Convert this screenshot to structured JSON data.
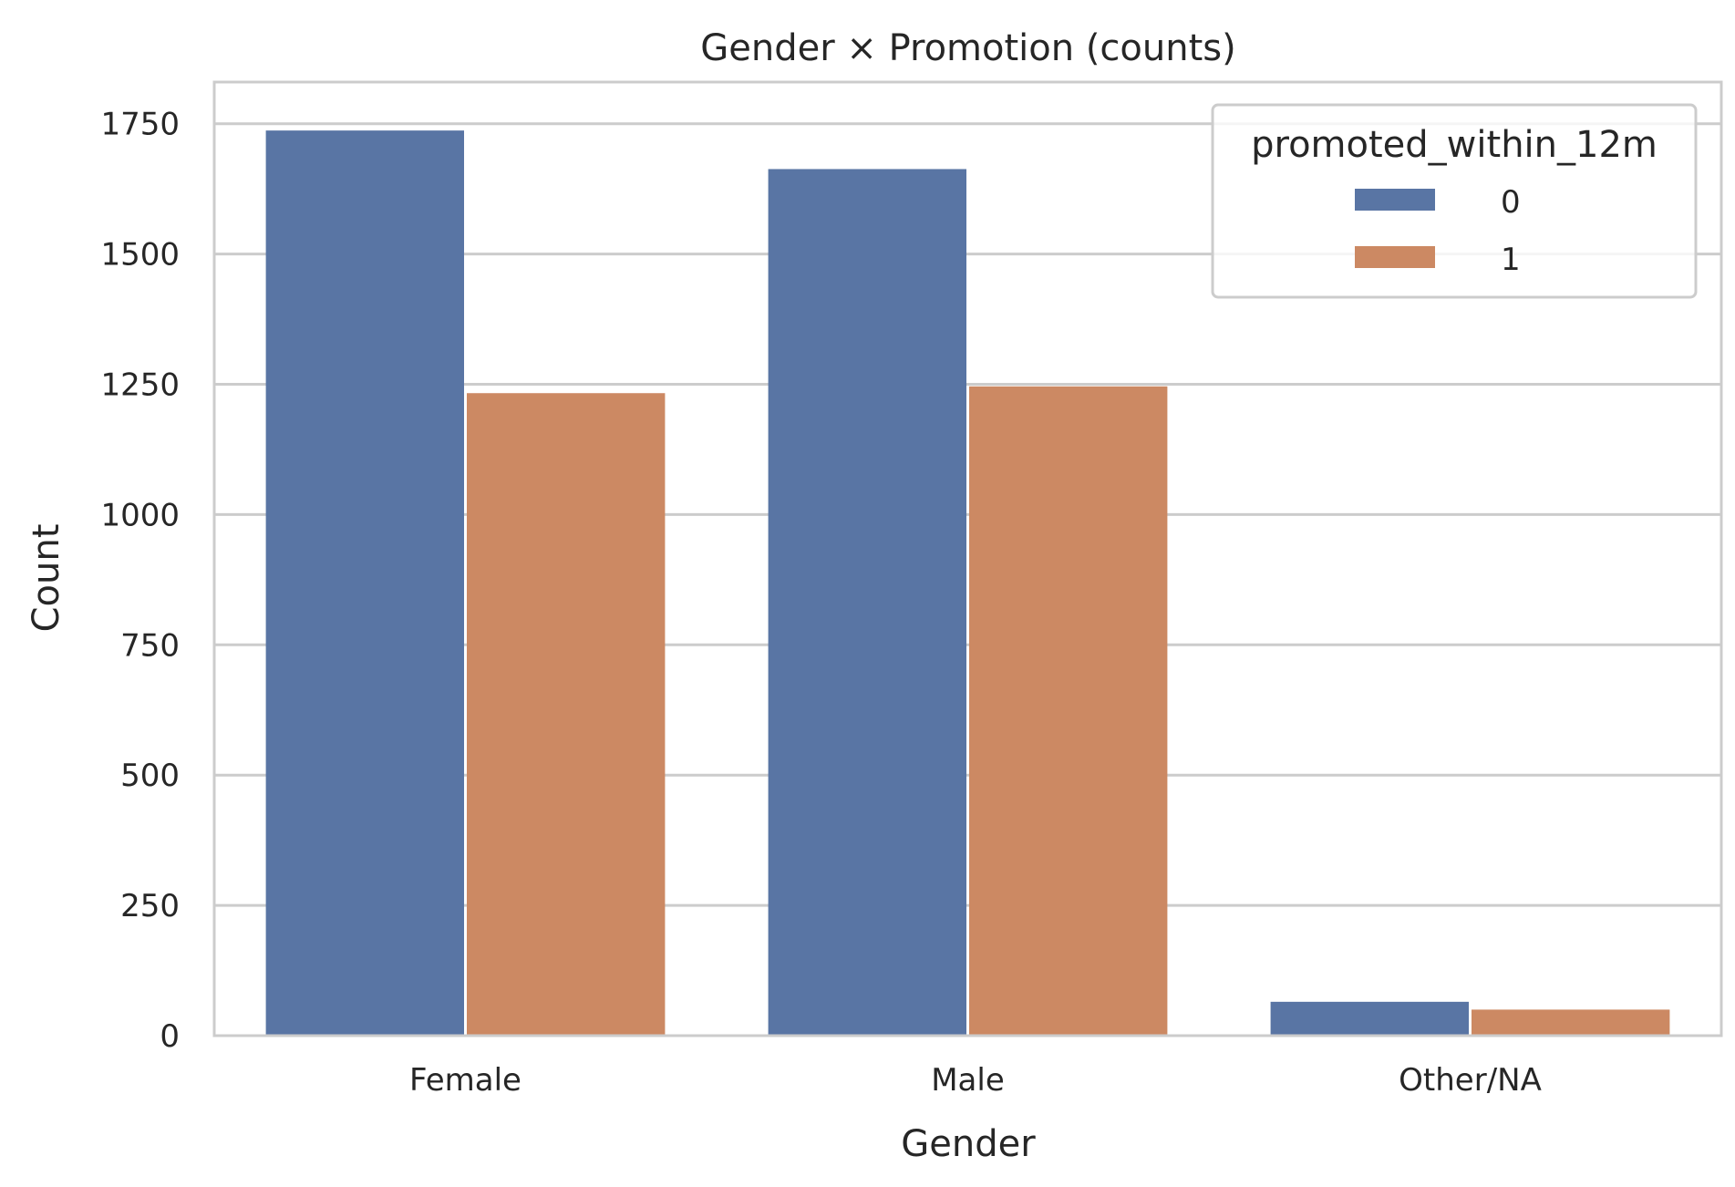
{
  "chart_data": {
    "type": "bar",
    "title": "Gender × Promotion (counts)",
    "xlabel": "Gender",
    "ylabel": "Count",
    "categories": [
      "Female",
      "Male",
      "Other/NA"
    ],
    "series": [
      {
        "name": "0",
        "values": [
          1737,
          1663,
          65
        ],
        "color": "#5975a4"
      },
      {
        "name": "1",
        "values": [
          1233,
          1246,
          50
        ],
        "color": "#cc8963"
      }
    ],
    "legend": {
      "title": "promoted_within_12m",
      "placement": "top-right"
    },
    "ylim": [
      0,
      1830
    ],
    "yticks": [
      0,
      250,
      500,
      750,
      1000,
      1250,
      1500,
      1750
    ],
    "grid": true
  }
}
